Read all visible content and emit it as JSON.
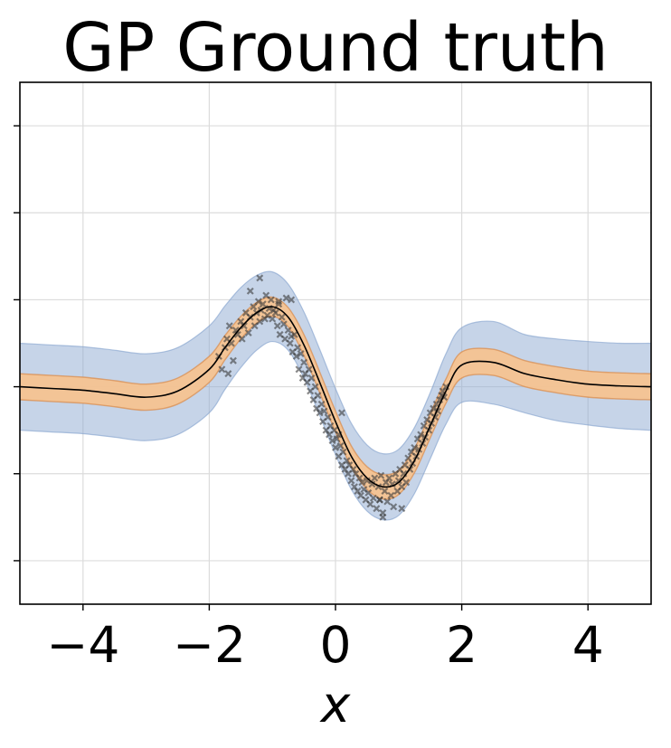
{
  "chart_data": {
    "type": "line",
    "title": "GP Ground truth",
    "xlabel": "x",
    "ylabel": "",
    "xlim": [
      -5,
      5
    ],
    "ylim": [
      -2.5,
      3.5
    ],
    "xticks": [
      -4,
      -2,
      0,
      2,
      4
    ],
    "xtick_labels": [
      "−4",
      "−2",
      "0",
      "2",
      "4"
    ],
    "yticks": [
      -2,
      -1,
      0,
      1,
      2,
      3
    ],
    "ytick_labels": [
      "",
      "",
      "",
      "",
      "",
      ""
    ],
    "grid": true,
    "legend": "none",
    "colors": {
      "mean": "#000000",
      "outer_band": "#8eaad2",
      "outer_edge": "#7f9fcb",
      "inner_band": "#f6c391",
      "inner_edge": "#d98a4a",
      "points": "#3a3a3a"
    },
    "x": [
      -5,
      -4.5,
      -4,
      -3.5,
      -3,
      -2.5,
      -2,
      -1.75,
      -1.5,
      -1.25,
      -1,
      -0.75,
      -0.5,
      -0.25,
      0,
      0.25,
      0.5,
      0.75,
      1,
      1.25,
      1.5,
      1.75,
      2,
      2.5,
      3,
      3.5,
      4,
      4.5,
      5
    ],
    "series": [
      {
        "values": [
          0.0,
          -0.02,
          -0.04,
          -0.08,
          -0.12,
          -0.05,
          0.2,
          0.45,
          0.68,
          0.85,
          0.92,
          0.8,
          0.48,
          0.05,
          -0.4,
          -0.8,
          -1.05,
          -1.15,
          -1.1,
          -0.85,
          -0.45,
          -0.05,
          0.25,
          0.28,
          0.15,
          0.08,
          0.03,
          0.01,
          0.0
        ]
      },
      {
        "values": [
          0.15,
          0.13,
          0.11,
          0.07,
          0.03,
          0.1,
          0.35,
          0.59,
          0.81,
          0.97,
          1.03,
          0.91,
          0.6,
          0.17,
          -0.28,
          -0.68,
          -0.92,
          -1.01,
          -0.96,
          -0.71,
          -0.31,
          0.09,
          0.4,
          0.43,
          0.3,
          0.23,
          0.18,
          0.16,
          0.15
        ]
      },
      {
        "values": [
          -0.15,
          -0.17,
          -0.19,
          -0.23,
          -0.27,
          -0.2,
          0.05,
          0.31,
          0.55,
          0.73,
          0.81,
          0.69,
          0.36,
          -0.07,
          -0.52,
          -0.92,
          -1.18,
          -1.29,
          -1.24,
          -0.99,
          -0.59,
          -0.19,
          0.1,
          0.13,
          0.0,
          -0.07,
          -0.12,
          -0.14,
          -0.15
        ]
      },
      {
        "values": [
          0.5,
          0.48,
          0.46,
          0.42,
          0.38,
          0.45,
          0.7,
          0.93,
          1.14,
          1.28,
          1.32,
          1.18,
          0.86,
          0.43,
          -0.02,
          -0.42,
          -0.67,
          -0.77,
          -0.72,
          -0.47,
          -0.07,
          0.38,
          0.68,
          0.75,
          0.6,
          0.55,
          0.52,
          0.5,
          0.5
        ]
      },
      {
        "values": [
          -0.5,
          -0.52,
          -0.54,
          -0.58,
          -0.62,
          -0.55,
          -0.3,
          -0.03,
          0.22,
          0.42,
          0.52,
          0.42,
          0.1,
          -0.33,
          -0.78,
          -1.18,
          -1.43,
          -1.53,
          -1.48,
          -1.23,
          -0.83,
          -0.43,
          -0.18,
          -0.2,
          -0.3,
          -0.39,
          -0.44,
          -0.48,
          -0.5
        ]
      }
    ],
    "scatter": {
      "x": [
        -1.85,
        -1.8,
        -1.75,
        -1.72,
        -1.68,
        -1.65,
        -1.62,
        -1.58,
        -1.55,
        -1.5,
        -1.48,
        -1.45,
        -1.42,
        -1.38,
        -1.35,
        -1.3,
        -1.28,
        -1.25,
        -1.22,
        -1.2,
        -1.18,
        -1.15,
        -1.12,
        -1.1,
        -1.08,
        -1.05,
        -1.02,
        -1.0,
        -0.98,
        -0.95,
        -0.92,
        -0.9,
        -0.88,
        -0.85,
        -0.82,
        -0.8,
        -0.78,
        -0.75,
        -0.72,
        -0.7,
        -0.68,
        -0.65,
        -0.62,
        -0.6,
        -0.58,
        -0.55,
        -0.52,
        -0.5,
        -0.48,
        -0.45,
        -0.42,
        -0.4,
        -0.38,
        -0.35,
        -0.32,
        -0.3,
        -0.28,
        -0.25,
        -0.22,
        -0.2,
        -0.18,
        -0.15,
        -0.12,
        -0.1,
        -0.08,
        -0.05,
        -0.02,
        0.0,
        0.02,
        0.05,
        0.08,
        0.1,
        0.12,
        0.15,
        0.18,
        0.2,
        0.22,
        0.25,
        0.28,
        0.3,
        0.32,
        0.35,
        0.38,
        0.4,
        0.42,
        0.45,
        0.48,
        0.5,
        0.52,
        0.55,
        0.58,
        0.6,
        0.62,
        0.65,
        0.68,
        0.7,
        0.72,
        0.75,
        0.78,
        0.8,
        0.82,
        0.85,
        0.88,
        0.9,
        0.92,
        0.95,
        0.98,
        1.0,
        1.02,
        1.05,
        1.08,
        1.1,
        1.12,
        1.15,
        1.18,
        1.2,
        1.22,
        1.25,
        1.28,
        1.3,
        1.32,
        1.35,
        1.38,
        1.4,
        1.42,
        1.45,
        1.48,
        1.5,
        1.52,
        1.55,
        1.58,
        1.6,
        1.62,
        1.65,
        1.68,
        1.7,
        1.72,
        1.75,
        -1.2,
        -1.35,
        -0.9,
        -0.7,
        0.75,
        0.7,
        1.05,
        0.1,
        -1.7,
        0.05
      ],
      "y": [
        0.35,
        0.2,
        0.45,
        0.55,
        0.7,
        0.5,
        0.3,
        0.65,
        0.6,
        0.75,
        0.55,
        0.7,
        0.85,
        0.62,
        0.8,
        0.92,
        0.7,
        0.85,
        0.98,
        0.75,
        0.88,
        0.95,
        0.78,
        1.05,
        0.82,
        0.9,
        1.0,
        0.78,
        0.88,
        0.85,
        0.7,
        0.95,
        0.6,
        0.8,
        0.72,
        0.55,
        1.02,
        0.65,
        0.5,
        0.58,
        0.4,
        0.6,
        0.35,
        0.45,
        0.2,
        0.38,
        0.1,
        0.28,
        0.15,
        0.05,
        0.2,
        -0.05,
        0.1,
        -0.15,
        0.0,
        -0.25,
        -0.1,
        -0.3,
        -0.2,
        -0.4,
        -0.28,
        -0.5,
        -0.35,
        -0.55,
        -0.45,
        -0.62,
        -0.5,
        -0.7,
        -0.6,
        -0.8,
        -0.68,
        -0.9,
        -0.75,
        -0.95,
        -0.85,
        -1.0,
        -0.9,
        -1.08,
        -0.95,
        -1.15,
        -1.0,
        -1.2,
        -1.05,
        -1.25,
        -1.1,
        -1.18,
        -1.3,
        -1.08,
        -1.22,
        -1.35,
        -1.12,
        -1.28,
        -1.05,
        -1.4,
        -1.15,
        -1.3,
        -1.02,
        -1.45,
        -1.2,
        -1.1,
        -1.32,
        -1.05,
        -1.25,
        -1.12,
        -1.38,
        -1.0,
        -1.2,
        -1.08,
        -0.95,
        -1.15,
        -1.0,
        -0.9,
        -1.1,
        -0.82,
        -0.95,
        -0.75,
        -0.88,
        -0.7,
        -0.8,
        -0.6,
        -0.72,
        -0.55,
        -0.65,
        -0.45,
        -0.58,
        -0.38,
        -0.5,
        -0.3,
        -0.42,
        -0.25,
        -0.35,
        -0.2,
        -0.28,
        -0.15,
        -0.1,
        -0.05,
        -0.12,
        0.0,
        1.25,
        1.1,
        0.98,
        1.0,
        -1.5,
        -1.3,
        -1.4,
        -0.3,
        0.15,
        -0.55
      ]
    }
  }
}
